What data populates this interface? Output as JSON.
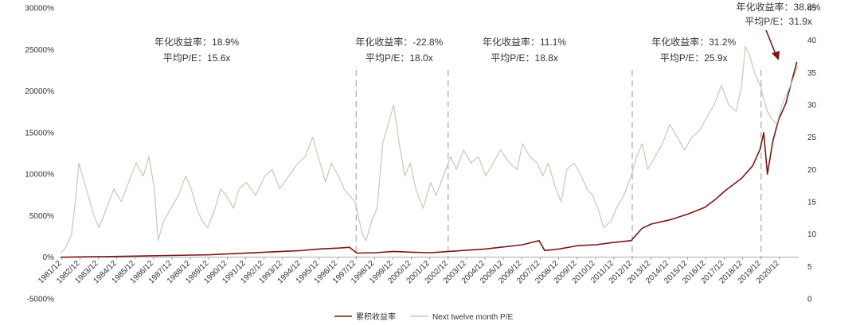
{
  "chart_data": {
    "type": "line",
    "title": "",
    "xlabel": "",
    "ylabel": "",
    "y_left_ticks": [
      "30000%",
      "25000%",
      "20000%",
      "15000%",
      "10000%",
      "5000%",
      "0%",
      "-5000%"
    ],
    "y_left_range": [
      -5000,
      30000
    ],
    "y_right_ticks": [
      "45",
      "40",
      "35",
      "30",
      "25",
      "20",
      "15",
      "10",
      "5",
      "0"
    ],
    "y_right_range": [
      0,
      45
    ],
    "x_ticks": [
      "1981/12",
      "1982/12",
      "1983/12",
      "1984/12",
      "1985/12",
      "1986/12",
      "1987/12",
      "1988/12",
      "1989/12",
      "1990/12",
      "1991/12",
      "1992/12",
      "1993/12",
      "1994/12",
      "1995/12",
      "1996/12",
      "1997/12",
      "1998/12",
      "1999/12",
      "2000/12",
      "2001/12",
      "2002/12",
      "2003/12",
      "2004/12",
      "2005/12",
      "2006/12",
      "2007/12",
      "2008/12",
      "2009/12",
      "2010/12",
      "2011/12",
      "2012/12",
      "2013/12",
      "2014/12",
      "2015/12",
      "2016/12",
      "2017/12",
      "2018/12",
      "2019/12",
      "2020/12"
    ],
    "x_range": [
      1981.9,
      2022.0
    ],
    "grid": false,
    "legend_position": "bottom",
    "series": [
      {
        "name": "累积收益率",
        "axis": "left",
        "color": "#7a1717",
        "x": [
          1981.9,
          1985.0,
          1990.0,
          1995.0,
          1996.0,
          1997.0,
          1997.6,
          1998.0,
          1999.0,
          2000.0,
          2001.0,
          2002.0,
          2003.0,
          2005.0,
          2007.0,
          2007.9,
          2008.2,
          2009.0,
          2010.0,
          2011.0,
          2012.0,
          2012.9,
          2013.5,
          2014.0,
          2015.0,
          2016.0,
          2016.9,
          2017.5,
          2018.0,
          2018.9,
          2019.5,
          2019.9,
          2020.1,
          2020.3,
          2020.6,
          2020.9,
          2021.3,
          2021.6,
          2021.9
        ],
        "values": [
          0,
          100,
          300,
          800,
          1000,
          1100,
          1200,
          500,
          550,
          700,
          600,
          550,
          700,
          1000,
          1500,
          2000,
          800,
          1000,
          1400,
          1500,
          1800,
          2000,
          3500,
          4000,
          4500,
          5200,
          6000,
          7000,
          8000,
          9500,
          11000,
          13000,
          15000,
          10000,
          14000,
          16500,
          18500,
          21000,
          23500
        ]
      },
      {
        "name": "Next twelve month P/E",
        "axis": "right",
        "color": "#c8c8b6",
        "x": [
          1981.9,
          1982.2,
          1982.5,
          1982.7,
          1982.9,
          1983.1,
          1983.4,
          1983.7,
          1984.0,
          1984.4,
          1984.8,
          1985.2,
          1985.6,
          1986.0,
          1986.4,
          1986.7,
          1987.0,
          1987.2,
          1987.5,
          1987.9,
          1988.3,
          1988.7,
          1989.0,
          1989.3,
          1989.6,
          1989.9,
          1990.3,
          1990.6,
          1990.9,
          1991.3,
          1991.6,
          1992.0,
          1992.5,
          1993.0,
          1993.4,
          1993.8,
          1994.3,
          1994.8,
          1995.2,
          1995.6,
          1996.0,
          1996.3,
          1996.6,
          1997.0,
          1997.3,
          1997.6,
          1997.9,
          1998.3,
          1998.5,
          1998.8,
          1999.1,
          1999.4,
          1999.8,
          2000.0,
          2000.3,
          2000.6,
          2000.9,
          2001.2,
          2001.6,
          2002.0,
          2002.3,
          2002.7,
          2003.1,
          2003.4,
          2003.8,
          2004.2,
          2004.6,
          2005.0,
          2005.4,
          2005.8,
          2006.3,
          2006.7,
          2007.0,
          2007.4,
          2007.8,
          2008.1,
          2008.4,
          2008.8,
          2009.1,
          2009.4,
          2009.8,
          2010.2,
          2010.5,
          2010.8,
          2011.1,
          2011.4,
          2011.8,
          2012.1,
          2012.5,
          2012.9,
          2013.2,
          2013.5,
          2013.8,
          2014.2,
          2014.6,
          2015.0,
          2015.4,
          2015.8,
          2016.2,
          2016.6,
          2017.0,
          2017.4,
          2017.8,
          2018.2,
          2018.6,
          2018.9,
          2019.1,
          2019.3,
          2019.6,
          2019.9,
          2020.1,
          2020.3,
          2020.5,
          2020.8,
          2021.1,
          2021.4,
          2021.7,
          2021.95
        ],
        "values": [
          7,
          8,
          10,
          15,
          21,
          19,
          16,
          13,
          11,
          14,
          17,
          15,
          18,
          21,
          19,
          22,
          17,
          9,
          12,
          14,
          16,
          19,
          17,
          14,
          12,
          11,
          14,
          17,
          16,
          14,
          17,
          18,
          16,
          19,
          20,
          17,
          19,
          21,
          22,
          25,
          21,
          18,
          21,
          19,
          17,
          16,
          15,
          10,
          9,
          12,
          14,
          24,
          28,
          30,
          24,
          19,
          21,
          17,
          14,
          18,
          16,
          19,
          22,
          20,
          23,
          21,
          22,
          19,
          21,
          23,
          21,
          20,
          24,
          22,
          21,
          19,
          21,
          17,
          15,
          20,
          21,
          19,
          17,
          16,
          14,
          11,
          12,
          14,
          16,
          19,
          22,
          24,
          20,
          22,
          24,
          27,
          25,
          23,
          25,
          26,
          28,
          30,
          33,
          30,
          29,
          33,
          39,
          38,
          35,
          33,
          31,
          29,
          28,
          27,
          30,
          32,
          34,
          36
        ]
      }
    ],
    "dividers": [
      "1997/12",
      "2002/12",
      "2012/12",
      "2019/12"
    ],
    "annotations": [
      {
        "line1": "年化收益率：18.9%",
        "line2": "平均P/E：15.6x",
        "x_year": 1989.3
      },
      {
        "line1": "年化收益率：-22.8%",
        "line2": "平均P/E：18.0x",
        "x_year": 2000.3
      },
      {
        "line1": "年化收益率：11.1%",
        "line2": "平均P/E：18.8x",
        "x_year": 2007.1
      },
      {
        "line1": "年化收益率：31.2%",
        "line2": "平均P/E：25.9x",
        "x_year": 2016.3
      },
      {
        "line1": "年化收益率：38.8%",
        "line2": "平均P/E：31.9x",
        "x_year": 2020.9
      }
    ]
  }
}
